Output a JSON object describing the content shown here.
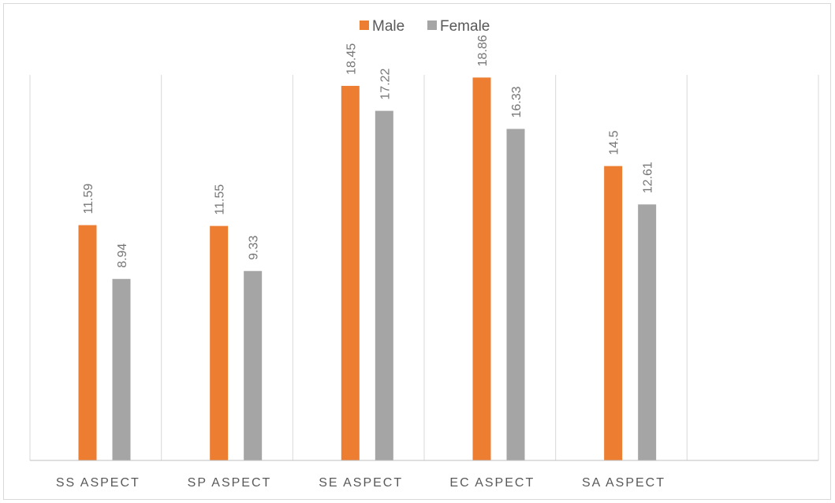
{
  "chart_data": {
    "type": "bar",
    "categories": [
      "SS ASPECT",
      "SP ASPECT",
      "SE ASPECT",
      "EC ASPECT",
      "SA ASPECT",
      ""
    ],
    "series": [
      {
        "name": "Male",
        "color": "#ed7d31",
        "values": [
          11.59,
          11.55,
          18.45,
          18.86,
          14.5,
          null
        ]
      },
      {
        "name": "Female",
        "color": "#a5a5a5",
        "values": [
          8.94,
          9.33,
          17.22,
          16.33,
          12.61,
          null
        ]
      }
    ],
    "title": "",
    "xlabel": "",
    "ylabel": "",
    "ylim": [
      0,
      20
    ],
    "grid": "vertical category separators",
    "legend": "top-center"
  }
}
